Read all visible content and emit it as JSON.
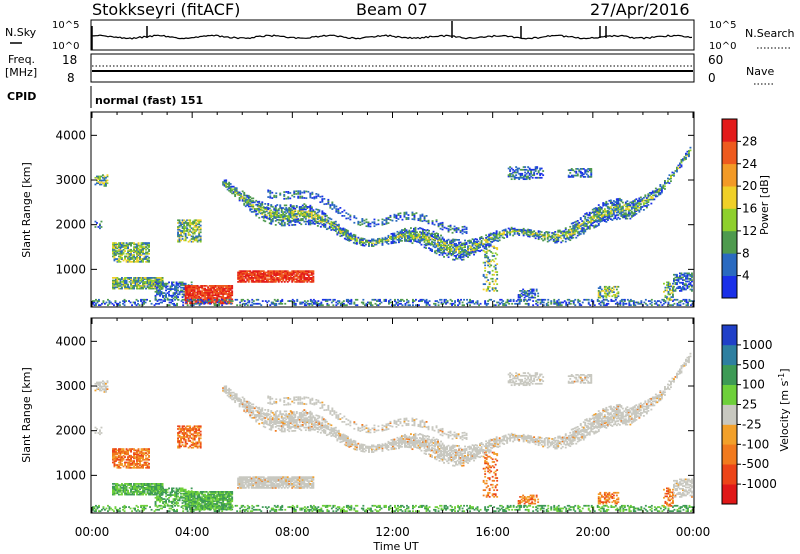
{
  "header": {
    "station": "Stokkseyri (fitACF)",
    "beam": "Beam 07",
    "date": "27/Apr/2016"
  },
  "noise_panel": {
    "left_label": "N.Sky",
    "right_label": "N.Search",
    "left_ticks": [
      "10^5",
      "10^0"
    ],
    "right_ticks": [
      "10^5",
      "10^0"
    ]
  },
  "freq_panel": {
    "left_label_line1": "Freq.",
    "left_label_line2": "[MHz]",
    "right_label": "Nave",
    "left_ticks": [
      "18",
      "8"
    ],
    "right_ticks": [
      "60",
      "0"
    ]
  },
  "cpid_panel": {
    "label": "CPID",
    "value": "normal (fast) 151"
  },
  "chart_data": [
    {
      "type": "heatmap",
      "quantity": "Power",
      "xlabel": "Time UT",
      "ylabel": "Slant Range [km]",
      "x_ticks": [
        "00:00",
        "04:00",
        "08:00",
        "12:00",
        "16:00",
        "20:00",
        "00:00"
      ],
      "xlim_hours": [
        0,
        24
      ],
      "ylim_km": [
        180,
        4500
      ],
      "y_ticks": [
        "1000",
        "2000",
        "3000",
        "4000"
      ],
      "colorbar": {
        "label": "Power [dB]",
        "ticks": [
          "4",
          "8",
          "12",
          "16",
          "20",
          "24",
          "28"
        ],
        "range": [
          0,
          30
        ],
        "colors": [
          "#1a30e8",
          "#2a6ac0",
          "#4e9a4e",
          "#8ecf2c",
          "#f0d028",
          "#f39a26",
          "#ee5a1e",
          "#e31b1b"
        ]
      }
    },
    {
      "type": "heatmap",
      "quantity": "Velocity",
      "xlabel": "Time UT",
      "ylabel": "Slant Range [km]",
      "x_ticks": [
        "00:00",
        "04:00",
        "08:00",
        "12:00",
        "16:00",
        "20:00",
        "00:00"
      ],
      "xlim_hours": [
        0,
        24
      ],
      "ylim_km": [
        180,
        4500
      ],
      "y_ticks": [
        "1000",
        "2000",
        "3000",
        "4000"
      ],
      "colorbar": {
        "label": "Velocity [m s^-1]",
        "ticks": [
          "1000",
          "500",
          "100",
          "25",
          "-25",
          "-100",
          "-500",
          "-1000"
        ],
        "colors": [
          "#2040c8",
          "#2e7fa0",
          "#3d9a55",
          "#6ed03a",
          "#c8c8c0",
          "#f2a02a",
          "#f17a1e",
          "#ec4418",
          "#e01818"
        ]
      }
    }
  ],
  "colors": {
    "ground_scatter": "#c8c8c0"
  }
}
